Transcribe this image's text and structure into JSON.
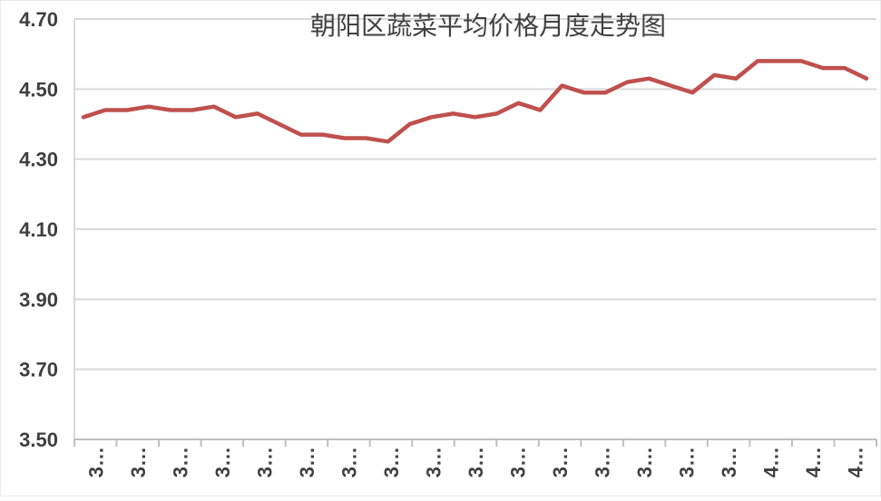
{
  "chart_data": {
    "type": "line",
    "title": "朝阳区蔬菜平均价格月度走势图",
    "xlabel": "",
    "ylabel": "",
    "ylim": [
      3.5,
      4.7
    ],
    "yticks": [
      "3.50",
      "3.70",
      "3.90",
      "4.10",
      "4.30",
      "4.50",
      "4.70"
    ],
    "grid": true,
    "legend": "none",
    "line_color": "#c0504d",
    "xtick_labels": [
      "3…",
      "3…",
      "3…",
      "3…",
      "3…",
      "3…",
      "3…",
      "3…",
      "3…",
      "3…",
      "3…",
      "3…",
      "3…",
      "3…",
      "3…",
      "3…",
      "4…",
      "4…",
      "4…"
    ],
    "series": [
      {
        "values": [
          4.42,
          4.44,
          4.44,
          4.45,
          4.44,
          4.44,
          4.45,
          4.42,
          4.43,
          4.4,
          4.37,
          4.37,
          4.36,
          4.36,
          4.35,
          4.4,
          4.42,
          4.43,
          4.42,
          4.43,
          4.46,
          4.44,
          4.51,
          4.49,
          4.49,
          4.52,
          4.53,
          4.51,
          4.49,
          4.54,
          4.53,
          4.58,
          4.58,
          4.58,
          4.56,
          4.56,
          4.53
        ]
      }
    ]
  }
}
